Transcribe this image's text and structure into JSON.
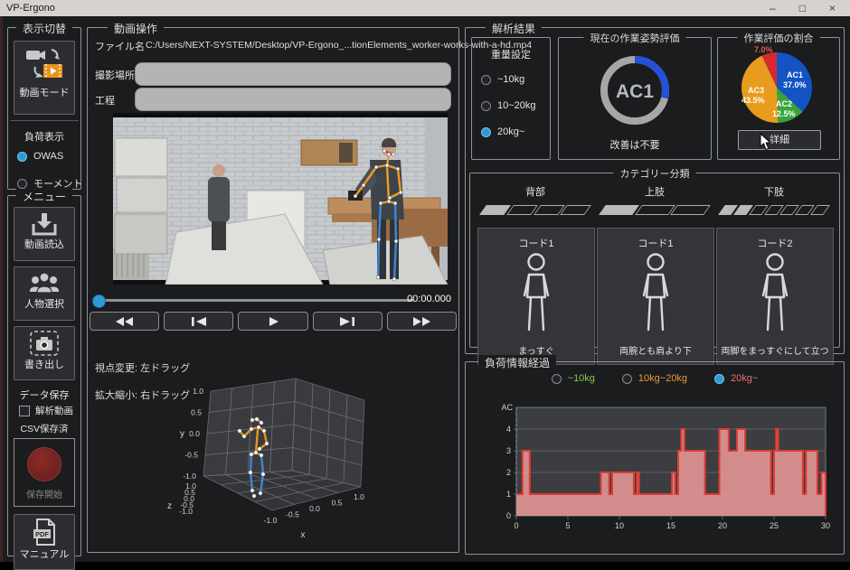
{
  "window": {
    "title": "VP-Ergono",
    "minimize_glyph": "–",
    "maximize_glyph": "□",
    "close_glyph": "×"
  },
  "sidebar": {
    "display_group": "表示切替",
    "video_mode_label": "動画モード",
    "load_display_label": "負荷表示",
    "load_options": [
      {
        "label": "OWAS",
        "selected": true
      },
      {
        "label": "モーメント",
        "selected": false
      }
    ],
    "menu_group": "メニュー",
    "load_video_label": "動画読込",
    "person_select_label": "人物選択",
    "export_label": "書き出し",
    "data_save_group": "データ保存",
    "analysis_video_label": "解析動画",
    "csv_status": "CSV保存済",
    "record_label": "保存開始",
    "manual_label": "マニュアル",
    "pdf_badge": "PDF"
  },
  "video_ops": {
    "group": "動画操作",
    "file_label": "ファイル名",
    "file_path": "C:/Users/NEXT-SYSTEM/Desktop/VP-Ergono_...tionElements_worker-works-with-a-hd.mp4",
    "location_label": "撮影場所",
    "location_value": "",
    "process_label": "工程",
    "process_value": "",
    "time": "00:00.000",
    "hint_rotate": "視点変更: 左ドラッグ",
    "hint_zoom": "拡大縮小: 右ドラッグ"
  },
  "plot3d": {
    "axis_labels": {
      "x": "x",
      "y": "y",
      "z": "z"
    },
    "yticks": [
      "1.0",
      "0.5",
      "0.0",
      "-0.5",
      "-1.0"
    ],
    "zticks": [
      "1.0",
      "0.5",
      "0.0",
      "-0.5",
      "-1.0"
    ],
    "xticks": [
      "-1.0",
      "-0.5",
      "0.0",
      "0.5",
      "1.0"
    ]
  },
  "analysis": {
    "group": "解析結果",
    "weight": {
      "title": "重量設定",
      "options": [
        {
          "label": "~10kg",
          "selected": false
        },
        {
          "label": "10~20kg",
          "selected": false
        },
        {
          "label": "20kg~",
          "selected": true
        }
      ]
    },
    "current": {
      "title": "現在の作業姿勢評価",
      "value": "AC1",
      "note": "改善は不要",
      "arc_percent": 29,
      "arc_color": "#2451d6"
    },
    "ratio": {
      "title": "作業評価の割合",
      "detail_label": "詳細",
      "slices": [
        {
          "name": "AC1",
          "value": 37.0,
          "color": "#1353c4",
          "label": "AC1",
          "pct_label": "37.0%"
        },
        {
          "name": "AC2",
          "value": 12.5,
          "color": "#3da23d",
          "label": "AC2",
          "pct_label": "12.5%"
        },
        {
          "name": "AC3",
          "value": 43.5,
          "color": "#e89c1e",
          "label": "AC3",
          "pct_label": "43.5%"
        },
        {
          "name": "other",
          "value": 7.0,
          "color": "#d42a2e",
          "label": "",
          "pct_label": "7.0%"
        }
      ]
    },
    "category": {
      "title": "カテゴリー分類",
      "columns": [
        {
          "header": "背部",
          "segments": 4,
          "filled": 1,
          "code": "コード1",
          "caption": "まっすぐ"
        },
        {
          "header": "上肢",
          "segments": 3,
          "filled": 1,
          "code": "コード1",
          "caption": "両腕とも肩より下"
        },
        {
          "header": "下肢",
          "segments": 7,
          "filled": 2,
          "code": "コード2",
          "caption": "両脚をまっすぐにして立つ"
        }
      ]
    }
  },
  "load_history": {
    "group": "負荷情報経過",
    "options": [
      {
        "label": "~10kg",
        "color": "#8bc34a",
        "selected": false
      },
      {
        "label": "10kg~20kg",
        "color": "#e09b3d",
        "selected": false
      },
      {
        "label": "20kg~",
        "color": "#e57373",
        "selected": true
      }
    ],
    "chart_data": {
      "type": "area",
      "ylabel": "AC",
      "xlim": [
        0,
        30
      ],
      "ylim": [
        0,
        5
      ],
      "yticks": [
        0,
        1,
        2,
        3,
        4
      ],
      "xticks": [
        0,
        5,
        10,
        15,
        20,
        25,
        30
      ],
      "fill_color": "#ef9a9a",
      "stroke_color": "#dd3c34",
      "steps": [
        [
          0,
          1
        ],
        [
          0.6,
          3
        ],
        [
          1.3,
          1
        ],
        [
          8.2,
          2
        ],
        [
          9.0,
          1
        ],
        [
          9.3,
          2
        ],
        [
          11.4,
          1
        ],
        [
          11.7,
          2
        ],
        [
          11.9,
          1
        ],
        [
          15.1,
          2
        ],
        [
          15.4,
          1
        ],
        [
          15.7,
          3
        ],
        [
          16.0,
          4
        ],
        [
          16.3,
          3
        ],
        [
          18.3,
          1
        ],
        [
          19.7,
          4
        ],
        [
          20.6,
          3
        ],
        [
          21.4,
          4
        ],
        [
          22.2,
          3
        ],
        [
          24.7,
          1
        ],
        [
          25.0,
          3
        ],
        [
          25.2,
          4
        ],
        [
          25.4,
          3
        ],
        [
          27.8,
          1
        ],
        [
          28.1,
          3
        ],
        [
          29.2,
          1
        ],
        [
          29.6,
          2
        ]
      ],
      "end_x": 30
    }
  }
}
